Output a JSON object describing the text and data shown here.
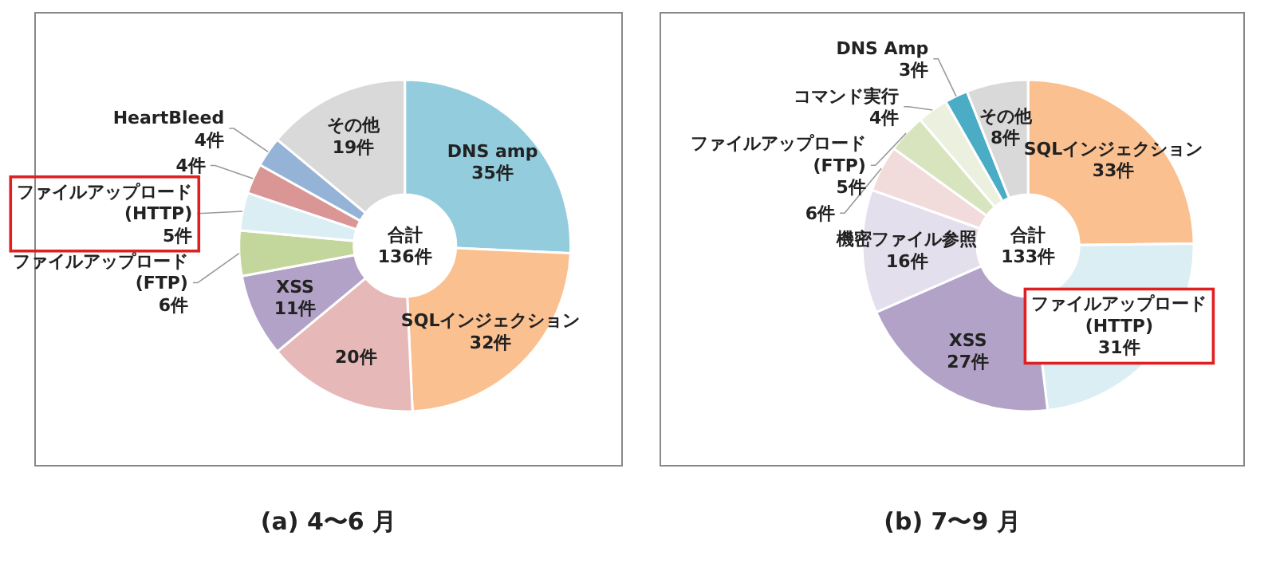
{
  "chart_data": [
    {
      "type": "donut",
      "title": "(a) 4〜6 月",
      "annotations": [
        "合計\n136件"
      ],
      "categories": [
        "DNS amp",
        "SQLインジェクション",
        null,
        "XSS",
        "ファイルアップロード\n(FTP)",
        "ファイルアップロード\n(HTTP)",
        null,
        "HeartBleed",
        "その他"
      ],
      "values": [
        35,
        32,
        20,
        11,
        6,
        5,
        4,
        4,
        19
      ],
      "value_labels": [
        "35件",
        "32件",
        "20件",
        "11件",
        "6件",
        "5件",
        "4件",
        "4件",
        "19件"
      ],
      "colors": [
        "#93cddd",
        "#fac090",
        "#e6b9b8",
        "#b3a2c7",
        "#c3d69b",
        "#dbeef4",
        "#d99694",
        "#95b3d7",
        "#d9d9d9"
      ]
    },
    {
      "type": "donut",
      "title": "(b) 7〜9 月",
      "annotations": [
        "合計\n133件"
      ],
      "categories": [
        "SQLインジェクション",
        "ファイルアップロード\n(HTTP)",
        "XSS",
        "機密ファイル参照",
        null,
        "ファイルアップロード\n(FTP)",
        "コマンド実行",
        "DNS Amp",
        "その他"
      ],
      "values": [
        33,
        31,
        27,
        16,
        6,
        5,
        4,
        3,
        8
      ],
      "value_labels": [
        "33件",
        "31件",
        "27件",
        "16件",
        "6件",
        "5件",
        "4件",
        "3件",
        "8件"
      ],
      "colors": [
        "#fac090",
        "#dbeef4",
        "#b3a2c7",
        "#e4dfec",
        "#f2dcdb",
        "#d7e4bd",
        "#ebf1de",
        "#4bacc6",
        "#d9d9d9"
      ]
    }
  ]
}
